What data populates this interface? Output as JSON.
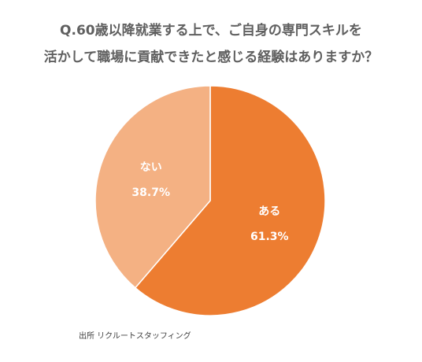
{
  "title_line1": "Q.60歳以降就業する上で、ご自身の専門スキルを",
  "title_line2": "活かして職場に貢献できたと感じる経験はありますか？",
  "source": "出所 リクルートスタッフィング",
  "chart_data": {
    "type": "pie",
    "title": "Q.60歳以降就業する上で、ご自身の専門スキルを活かして職場に貢献できたと感じる経験はありますか？",
    "slices": [
      {
        "label": "ある",
        "value": 61.3,
        "value_label": "61.3%",
        "color": "#ed7d31"
      },
      {
        "label": "ない",
        "value": 38.7,
        "value_label": "38.7%",
        "color": "#f4b183"
      }
    ],
    "legend": "none"
  }
}
